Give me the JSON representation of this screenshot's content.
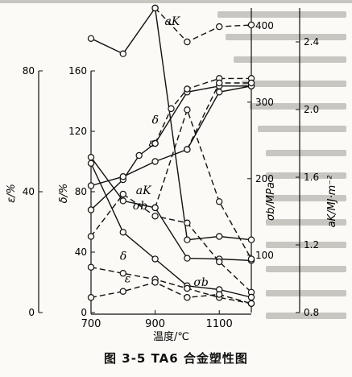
{
  "figure_caption": "图 3-5   TA6 合金塑性图",
  "chart_data": {
    "type": "line",
    "title": "",
    "xlabel": "温度/℃",
    "xlim": [
      700,
      1200
    ],
    "xticks": [
      700,
      900,
      1100
    ],
    "axes": [
      {
        "id": "eps",
        "label": "ε/%",
        "ticks": [
          0,
          40,
          80
        ],
        "ylim": [
          0,
          80
        ]
      },
      {
        "id": "delta",
        "label": "δ/%",
        "ticks": [
          0,
          40,
          80,
          120,
          160
        ],
        "ylim": [
          0,
          160
        ]
      },
      {
        "id": "sigma",
        "label": "σb/MPa",
        "ticks": [
          100,
          200,
          300,
          400
        ],
        "ylim": [
          25,
          423
        ]
      },
      {
        "id": "ak",
        "label": "aK/MJ·m⁻²",
        "ticks": [
          0.8,
          1.2,
          1.6,
          2.0,
          2.4
        ],
        "ylim": [
          0.8,
          2.6
        ]
      }
    ],
    "series": [
      {
        "name": "aK",
        "group": "upper",
        "axis": "ak",
        "style": "solid",
        "x": [
          700,
          800,
          900,
          1000,
          1100,
          1200
        ],
        "y": [
          2.42,
          2.33,
          2.6,
          1.23,
          1.25,
          1.23
        ]
      },
      {
        "name": "aK",
        "group": "upper",
        "axis": "ak",
        "style": "dashed",
        "x": [
          900,
          1000,
          1100,
          1200
        ],
        "y": [
          2.6,
          2.4,
          2.49,
          2.5
        ]
      },
      {
        "name": "δ",
        "group": "upper",
        "axis": "delta",
        "style": "solid",
        "x": [
          700,
          800,
          850,
          900,
          1000,
          1100,
          1200
        ],
        "y": [
          68,
          88,
          104,
          112,
          146,
          150,
          150
        ]
      },
      {
        "name": "δ",
        "group": "upper",
        "axis": "delta",
        "style": "dashed",
        "x": [
          900,
          950,
          1000,
          1100,
          1200
        ],
        "y": [
          112,
          135,
          148,
          155,
          155
        ]
      },
      {
        "name": "ε",
        "group": "upper",
        "axis": "eps",
        "style": "solid",
        "x": [
          700,
          800,
          900,
          1000,
          1100,
          1200
        ],
        "y": [
          42,
          45,
          50,
          54,
          73,
          75
        ]
      },
      {
        "name": "ε",
        "group": "upper",
        "axis": "eps",
        "style": "dashed",
        "x": [
          1000,
          1100,
          1200
        ],
        "y": [
          54,
          76,
          76
        ]
      },
      {
        "name": "σb",
        "group": "upper",
        "axis": "sigma",
        "style": "solid",
        "x": [
          700,
          800,
          900,
          1000,
          1100,
          1200
        ],
        "y": [
          228,
          171,
          162,
          96,
          95,
          93
        ]
      },
      {
        "name": "σb",
        "group": "upper",
        "axis": "sigma",
        "style": "dashed",
        "x": [
          900,
          1000,
          1100,
          1200
        ],
        "y": [
          162,
          290,
          170,
          95
        ]
      },
      {
        "name": "aK",
        "group": "lower",
        "axis": "ak",
        "style": "dashed",
        "x": [
          700,
          800,
          900,
          1000,
          1100,
          1200
        ],
        "y": [
          1.25,
          1.5,
          1.37,
          1.33,
          1.1,
          0.92
        ]
      },
      {
        "name": "σb",
        "group": "lower",
        "axis": "sigma",
        "style": "solid",
        "x": [
          700,
          800,
          900,
          1000,
          1100,
          1200
        ],
        "y": [
          220,
          130,
          95,
          60,
          55,
          45
        ]
      },
      {
        "name": "δ",
        "group": "lower",
        "axis": "delta",
        "style": "dashed",
        "x": [
          700,
          800,
          900,
          1000,
          1100,
          1200
        ],
        "y": [
          30,
          26,
          22,
          16,
          10,
          6
        ]
      },
      {
        "name": "ε",
        "group": "lower",
        "axis": "eps",
        "style": "dashed",
        "x": [
          700,
          800,
          900,
          1000,
          1100,
          1200
        ],
        "y": [
          5,
          7,
          10,
          5,
          6,
          3
        ]
      }
    ],
    "labels": [
      {
        "text": "aK",
        "x": 930,
        "axis": "ak",
        "y": 2.5
      },
      {
        "text": "δ",
        "x": 890,
        "axis": "delta",
        "y": 125
      },
      {
        "text": "ε",
        "x": 880,
        "axis": "eps",
        "y": 55
      },
      {
        "text": "aK",
        "x": 840,
        "axis": "ak",
        "y": 1.5
      },
      {
        "text": "σb",
        "x": 830,
        "axis": "sigma",
        "y": 160
      },
      {
        "text": "δ",
        "x": 790,
        "axis": "delta",
        "y": 35
      },
      {
        "text": "ε",
        "x": 805,
        "axis": "eps",
        "y": 10
      },
      {
        "text": "σb",
        "x": 1020,
        "axis": "sigma",
        "y": 60
      }
    ],
    "grid": false,
    "legend": "none"
  }
}
